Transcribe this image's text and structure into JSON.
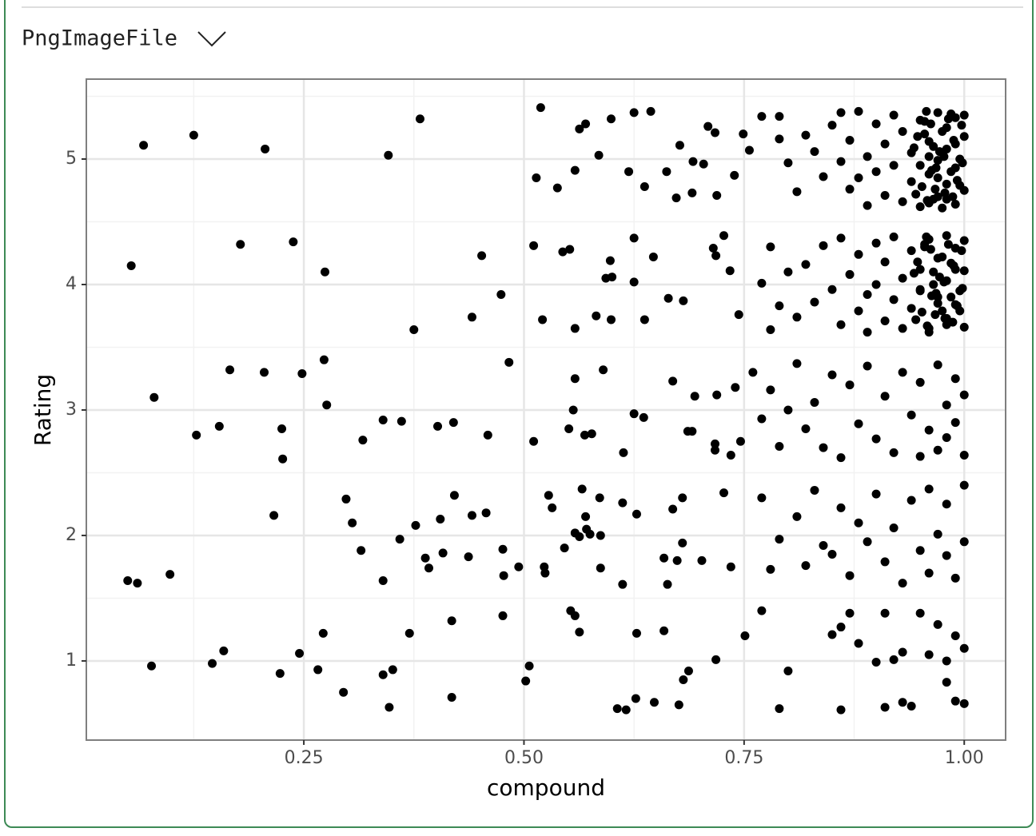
{
  "header": {
    "label": "PngImageFile"
  },
  "chart_data": {
    "type": "scatter",
    "xlabel": "compound",
    "ylabel": "Rating",
    "color": "#000000",
    "grid": true,
    "xlim": [
      0.003,
      1.047
    ],
    "ylim": [
      0.369,
      5.637
    ],
    "xticks": [
      0.25,
      {
        "value": 0.5,
        "label": "0.50"
      },
      0.75,
      {
        "value": 1,
        "label": "1.00"
      }
    ],
    "yticks": [
      1,
      2,
      3,
      4,
      5
    ],
    "minor_xticks": [
      0.125,
      0.375,
      0.625,
      0.875
    ],
    "minor_yticks": [
      1.5,
      2.5,
      3.5,
      4.5,
      5.5
    ],
    "x": [
      0.068,
      0.125,
      0.206,
      0.382,
      0.346,
      0.519,
      0.054,
      0.178,
      0.238,
      0.274,
      0.452,
      0.08,
      0.166,
      0.128,
      0.154,
      0.205,
      0.248,
      0.273,
      0.276,
      0.225,
      0.226,
      0.317,
      0.34,
      0.361,
      0.402,
      0.42,
      0.459,
      0.483,
      0.375,
      0.441,
      0.474,
      0.05,
      0.061,
      0.098,
      0.216,
      0.077,
      0.146,
      0.159,
      0.223,
      0.245,
      0.272,
      0.266,
      0.295,
      0.298,
      0.305,
      0.315,
      0.34,
      0.34,
      0.347,
      0.351,
      0.359,
      0.37,
      0.377,
      0.388,
      0.392,
      0.405,
      0.408,
      0.418,
      0.418,
      0.421,
      0.437,
      0.441,
      0.457,
      0.476,
      0.477,
      0.476,
      0.494,
      0.502,
      0.506,
      0.514,
      0.538,
      0.558,
      0.563,
      0.57,
      0.585,
      0.599,
      0.619,
      0.625,
      0.637,
      0.644,
      0.662,
      0.673,
      0.677,
      0.691,
      0.692,
      0.704,
      0.709,
      0.717,
      0.719,
      0.739,
      0.749,
      0.756,
      0.511,
      0.521,
      0.544,
      0.552,
      0.558,
      0.582,
      0.593,
      0.598,
      0.599,
      0.6,
      0.625,
      0.625,
      0.637,
      0.647,
      0.664,
      0.681,
      0.715,
      0.718,
      0.727,
      0.734,
      0.744,
      0.511,
      0.551,
      0.556,
      0.558,
      0.569,
      0.577,
      0.59,
      0.613,
      0.625,
      0.636,
      0.669,
      0.686,
      0.691,
      0.694,
      0.717,
      0.717,
      0.719,
      0.735,
      0.74,
      0.746,
      0.523,
      0.524,
      0.528,
      0.532,
      0.546,
      0.558,
      0.563,
      0.566,
      0.57,
      0.571,
      0.575,
      0.586,
      0.587,
      0.587,
      0.612,
      0.612,
      0.628,
      0.659,
      0.663,
      0.669,
      0.674,
      0.68,
      0.68,
      0.702,
      0.727,
      0.735,
      0.553,
      0.558,
      0.563,
      0.606,
      0.616,
      0.627,
      0.628,
      0.648,
      0.659,
      0.676,
      0.681,
      0.687,
      0.718,
      0.751,
      0.77,
      0.79,
      0.79,
      0.8,
      0.81,
      0.82,
      0.83,
      0.84,
      0.85,
      0.86,
      0.86,
      0.87,
      0.87,
      0.88,
      0.88,
      0.89,
      0.89,
      0.9,
      0.9,
      0.91,
      0.91,
      0.92,
      0.92,
      0.93,
      0.93,
      0.94,
      0.94,
      0.95,
      0.95,
      0.96,
      0.96,
      0.97,
      0.97,
      0.97,
      0.98,
      0.98,
      0.98,
      0.99,
      0.99,
      0.99,
      1,
      1,
      0.96,
      0.975,
      0.985,
      0.995,
      0.965,
      0.955,
      0.945,
      0.95,
      0.955,
      0.96,
      0.965,
      0.97,
      0.975,
      0.98,
      0.985,
      0.99,
      0.995,
      1,
      0.947,
      0.952,
      0.958,
      0.962,
      0.968,
      0.972,
      0.978,
      0.982,
      0.988,
      0.992,
      0.998,
      0.943,
      0.957,
      0.967,
      0.977,
      0.987,
      0.997,
      0.963,
      0.945,
      0.95,
      0.955,
      0.96,
      0.965,
      0.97,
      0.975,
      0.98,
      0.985,
      0.99,
      0.995,
      1,
      0.947,
      0.952,
      0.958,
      0.962,
      0.968,
      0.972,
      0.978,
      0.982,
      0.988,
      0.992,
      0.998,
      0.943,
      0.957,
      0.967,
      0.977,
      0.987,
      0.997,
      0.963,
      0.77,
      0.78,
      0.78,
      0.79,
      0.8,
      0.81,
      0.82,
      0.83,
      0.84,
      0.85,
      0.86,
      0.86,
      0.87,
      0.88,
      0.88,
      0.89,
      0.89,
      0.9,
      0.9,
      0.91,
      0.91,
      0.92,
      0.92,
      0.93,
      0.93,
      0.94,
      0.94,
      0.95,
      0.95,
      0.96,
      0.96,
      0.97,
      0.97,
      0.98,
      0.98,
      0.98,
      0.99,
      0.99,
      1,
      1,
      0.965,
      0.975,
      0.985,
      0.995,
      0.955,
      0.76,
      0.77,
      0.78,
      0.79,
      0.8,
      0.81,
      0.82,
      0.83,
      0.84,
      0.85,
      0.86,
      0.87,
      0.88,
      0.89,
      0.9,
      0.91,
      0.92,
      0.93,
      0.94,
      0.95,
      0.95,
      0.96,
      0.97,
      0.97,
      0.98,
      0.98,
      0.99,
      0.99,
      1,
      1,
      0.77,
      0.78,
      0.79,
      0.81,
      0.82,
      0.83,
      0.84,
      0.85,
      0.86,
      0.87,
      0.88,
      0.89,
      0.9,
      0.91,
      0.92,
      0.93,
      0.94,
      0.95,
      0.96,
      0.96,
      0.97,
      0.98,
      0.98,
      0.99,
      1,
      1,
      0.77,
      0.79,
      0.8,
      0.85,
      0.86,
      0.86,
      0.87,
      0.88,
      0.9,
      0.91,
      0.91,
      0.92,
      0.93,
      0.93,
      0.94,
      0.95,
      0.96,
      0.97,
      0.98,
      0.98,
      0.99,
      0.99,
      1,
      1
    ],
    "values": [
      5.11,
      5.19,
      5.08,
      5.32,
      5.03,
      5.41,
      4.15,
      4.32,
      4.34,
      4.1,
      4.23,
      3.1,
      3.32,
      2.8,
      2.87,
      3.3,
      3.29,
      3.4,
      3.04,
      2.85,
      2.61,
      2.76,
      2.92,
      2.91,
      2.87,
      2.9,
      2.8,
      3.38,
      3.64,
      3.74,
      3.92,
      1.64,
      1.62,
      1.69,
      2.16,
      0.96,
      0.98,
      1.08,
      0.9,
      1.06,
      1.22,
      0.93,
      0.75,
      2.29,
      2.1,
      1.88,
      1.64,
      0.89,
      0.63,
      0.93,
      1.97,
      1.22,
      2.08,
      1.82,
      1.74,
      2.13,
      1.86,
      1.32,
      0.71,
      2.32,
      1.83,
      2.16,
      2.18,
      1.89,
      1.68,
      1.36,
      1.75,
      0.84,
      0.96,
      4.85,
      4.77,
      4.91,
      5.24,
      5.28,
      5.03,
      5.32,
      4.9,
      5.37,
      4.78,
      5.38,
      4.9,
      4.69,
      5.11,
      4.73,
      4.98,
      4.96,
      5.26,
      5.21,
      4.71,
      4.87,
      5.2,
      5.07,
      4.31,
      3.72,
      4.26,
      4.28,
      3.65,
      3.75,
      4.05,
      4.19,
      3.72,
      4.06,
      4.37,
      4.02,
      3.72,
      4.22,
      3.89,
      3.87,
      4.29,
      4.23,
      4.39,
      4.11,
      3.76,
      2.75,
      2.85,
      3.0,
      3.25,
      2.8,
      2.81,
      3.32,
      2.66,
      2.97,
      2.94,
      3.23,
      2.83,
      2.83,
      3.11,
      2.73,
      2.68,
      3.12,
      2.64,
      3.18,
      2.75,
      1.75,
      1.7,
      2.32,
      2.22,
      1.9,
      2.02,
      1.99,
      2.37,
      2.15,
      2.05,
      2.01,
      2.3,
      1.74,
      2.0,
      1.61,
      2.26,
      2.17,
      1.82,
      1.61,
      2.21,
      1.8,
      1.94,
      2.3,
      1.8,
      2.34,
      1.75,
      1.4,
      1.36,
      1.23,
      0.62,
      0.61,
      0.7,
      1.22,
      0.67,
      1.24,
      0.65,
      0.85,
      0.92,
      1.01,
      1.2,
      5.34,
      5.34,
      5.16,
      4.97,
      4.74,
      5.19,
      5.06,
      4.86,
      5.27,
      5.37,
      4.98,
      4.76,
      5.15,
      5.38,
      4.85,
      5.02,
      4.63,
      5.28,
      4.9,
      5.12,
      4.71,
      5.35,
      4.95,
      5.22,
      4.66,
      5.05,
      4.82,
      5.31,
      4.62,
      5.14,
      4.88,
      5.37,
      4.99,
      4.7,
      5.25,
      4.8,
      5.08,
      5.33,
      4.64,
      4.93,
      5.18,
      4.75,
      5.02,
      4.61,
      5.36,
      5.0,
      4.68,
      5.2,
      4.72,
      4.95,
      5.3,
      4.65,
      5.1,
      4.85,
      5.22,
      4.68,
      4.9,
      5.12,
      4.79,
      5.35,
      5.18,
      4.78,
      4.67,
      5.28,
      4.93,
      5.06,
      4.73,
      5.32,
      5.15,
      4.83,
      4.97,
      5.09,
      5.38,
      4.76,
      5.02,
      4.7,
      5.27,
      4.91,
      3.72,
      3.95,
      4.3,
      3.65,
      4.1,
      3.85,
      4.22,
      3.68,
      3.9,
      4.12,
      3.79,
      4.35,
      4.18,
      3.78,
      3.67,
      4.28,
      3.93,
      4.06,
      3.73,
      4.32,
      4.15,
      3.83,
      3.97,
      4.09,
      4.38,
      3.76,
      4.02,
      3.7,
      4.27,
      3.91,
      4.01,
      3.64,
      4.3,
      3.83,
      4.1,
      3.74,
      4.16,
      3.86,
      4.31,
      3.96,
      3.68,
      4.37,
      4.08,
      3.79,
      4.24,
      3.92,
      3.62,
      4.33,
      4.0,
      3.71,
      4.18,
      3.88,
      4.38,
      4.05,
      3.65,
      4.27,
      3.81,
      4.12,
      3.96,
      4.36,
      3.62,
      4.21,
      3.9,
      4.39,
      3.73,
      4.03,
      4.29,
      3.84,
      4.11,
      3.66,
      4.0,
      3.79,
      4.17,
      3.95,
      4.32,
      3.3,
      2.93,
      3.16,
      2.71,
      3.0,
      3.37,
      2.85,
      3.06,
      2.7,
      3.28,
      2.62,
      3.2,
      2.89,
      3.35,
      2.77,
      3.11,
      2.66,
      3.3,
      2.96,
      2.63,
      3.22,
      2.84,
      3.36,
      2.68,
      3.04,
      2.78,
      3.25,
      2.9,
      3.12,
      2.64,
      2.3,
      1.73,
      1.97,
      2.15,
      1.76,
      2.36,
      1.92,
      1.85,
      2.22,
      1.68,
      2.1,
      1.95,
      2.33,
      1.79,
      2.06,
      1.62,
      2.28,
      1.88,
      2.37,
      1.7,
      2.01,
      1.84,
      2.25,
      1.66,
      2.4,
      1.95,
      1.4,
      0.62,
      0.92,
      1.21,
      1.27,
      0.61,
      1.38,
      1.14,
      0.99,
      1.38,
      0.63,
      1.01,
      1.07,
      0.67,
      0.64,
      1.38,
      1.05,
      1.29,
      0.83,
      1.0,
      0.68,
      1.2,
      1.1,
      0.66
    ]
  }
}
